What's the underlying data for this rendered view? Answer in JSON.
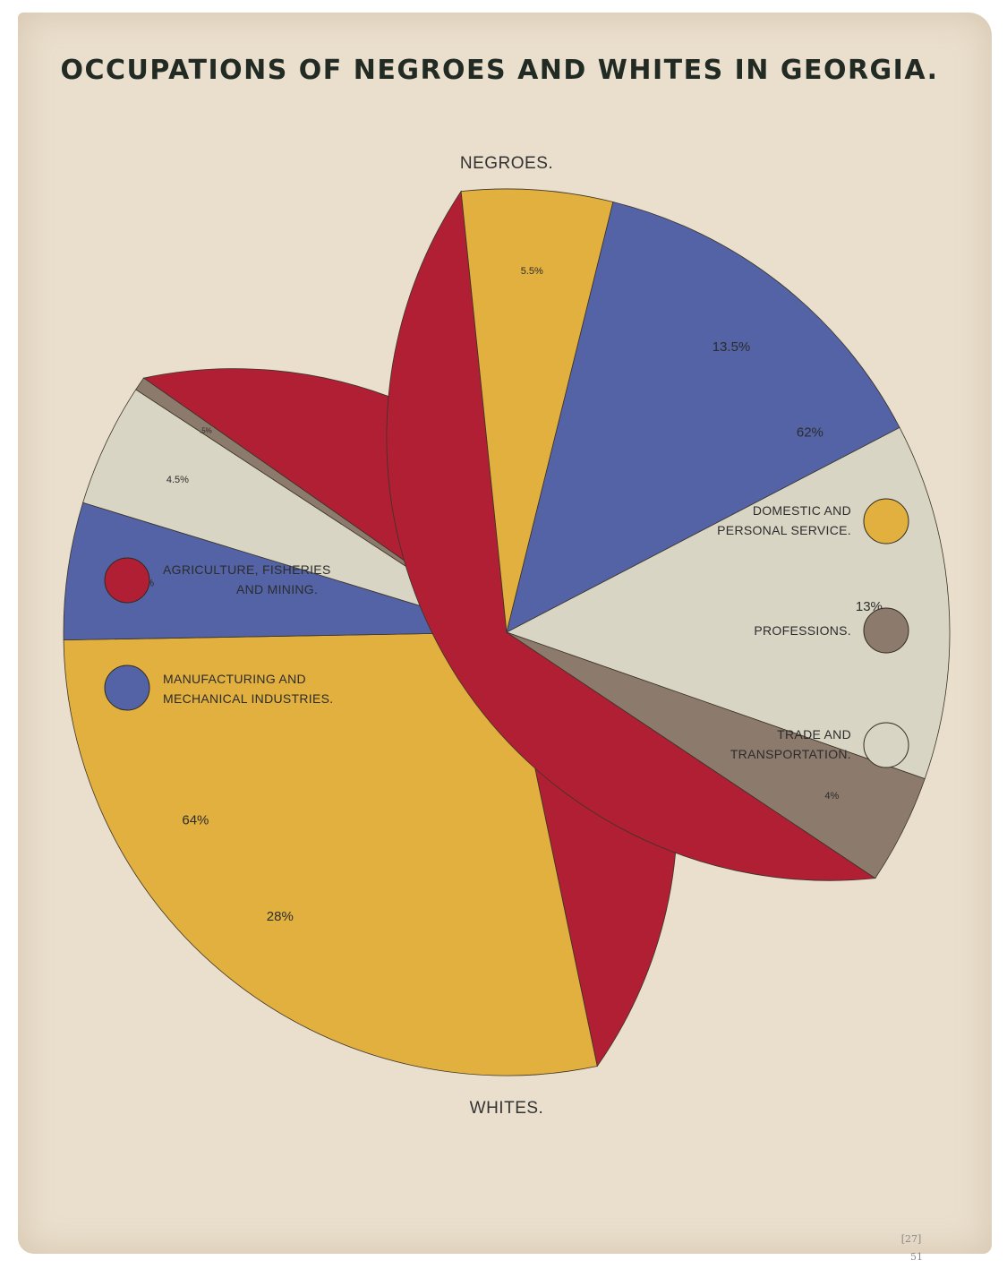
{
  "title": "OCCUPATIONS OF NEGROES AND WHITES IN GEORGIA.",
  "page_marks": [
    "[27]",
    "51"
  ],
  "chart_data": {
    "type": "pie",
    "title": "OCCUPATIONS OF NEGROES AND WHITES IN GEORGIA.",
    "categories": [
      {
        "key": "agriculture",
        "label_lines": [
          "AGRICULTURE, FISHERIES",
          "AND MINING."
        ],
        "color": "#b01f34"
      },
      {
        "key": "domestic",
        "label_lines": [
          "DOMESTIC AND",
          "PERSONAL SERVICE."
        ],
        "color": "#e2b03e"
      },
      {
        "key": "manufacturing",
        "label_lines": [
          "MANUFACTURING AND",
          "MECHANICAL INDUSTRIES."
        ],
        "color": "#5363a6"
      },
      {
        "key": "trade",
        "label_lines": [
          "TRADE AND",
          "TRANSPORTATION."
        ],
        "color": "#d9d5c4"
      },
      {
        "key": "professions",
        "label_lines": [
          "PROFESSIONS."
        ],
        "color": "#8c7a6c"
      }
    ],
    "series": [
      {
        "name": "NEGROES.",
        "slices": [
          {
            "category": "agriculture",
            "value": 62,
            "label": "62%"
          },
          {
            "category": "domestic",
            "value": 28,
            "label": "28%"
          },
          {
            "category": "manufacturing",
            "value": 5,
            "label": "5%"
          },
          {
            "category": "trade",
            "value": 4.5,
            "label": "4.5%"
          },
          {
            "category": "professions",
            "value": 0.5,
            "label": ".5%"
          }
        ]
      },
      {
        "name": "WHITES.",
        "slices": [
          {
            "category": "agriculture",
            "value": 64,
            "label": "64%"
          },
          {
            "category": "domestic",
            "value": 5.5,
            "label": "5.5%"
          },
          {
            "category": "manufacturing",
            "value": 13.5,
            "label": "13.5%"
          },
          {
            "category": "trade",
            "value": 13,
            "label": "13%"
          },
          {
            "category": "professions",
            "value": 4,
            "label": "4%"
          }
        ]
      }
    ]
  }
}
